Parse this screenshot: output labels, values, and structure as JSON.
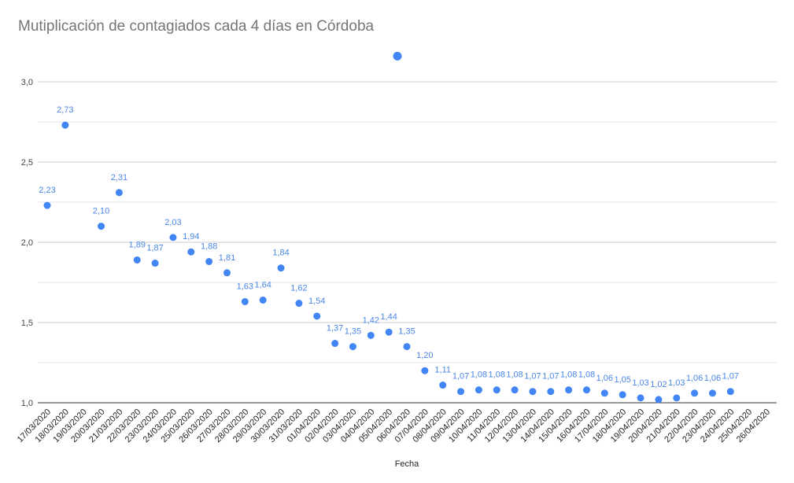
{
  "chart_data": {
    "type": "scatter",
    "title": "Mutiplicación de contagiados cada 4 días en Córdoba",
    "xlabel": "Fecha",
    "ylabel": "",
    "ylim": [
      1.0,
      3.2
    ],
    "yticks": [
      "1,0",
      "1,5",
      "2,0",
      "2,5",
      "3,0"
    ],
    "ytick_values": [
      1.0,
      1.5,
      2.0,
      2.5,
      3.0
    ],
    "grid": true,
    "color": "#4285f4",
    "label_color": "#4a86e8",
    "categories": [
      "17/03/2020",
      "18/03/2020",
      "19/03/2020",
      "20/03/2020",
      "21/03/2020",
      "22/03/2020",
      "23/03/2020",
      "24/03/2020",
      "25/03/2020",
      "26/03/2020",
      "27/03/2020",
      "28/03/2020",
      "29/03/2020",
      "30/03/2020",
      "31/03/2020",
      "01/04/2020",
      "02/04/2020",
      "03/04/2020",
      "04/04/2020",
      "05/04/2020",
      "06/04/2020",
      "07/04/2020",
      "08/04/2020",
      "09/04/2020",
      "10/04/2020",
      "11/04/2020",
      "12/04/2020",
      "13/04/2020",
      "14/04/2020",
      "15/04/2020",
      "16/04/2020",
      "17/04/2020",
      "18/04/2020",
      "19/04/2020",
      "20/04/2020",
      "21/04/2020",
      "22/04/2020",
      "23/04/2020",
      "24/04/2020",
      "25/04/2020",
      "26/04/2020"
    ],
    "values": [
      2.23,
      2.73,
      null,
      2.1,
      2.31,
      1.89,
      1.87,
      2.03,
      1.94,
      1.88,
      1.81,
      1.63,
      1.64,
      1.84,
      1.62,
      1.54,
      1.37,
      1.35,
      1.42,
      1.44,
      1.35,
      1.2,
      1.11,
      1.07,
      1.08,
      1.08,
      1.08,
      1.07,
      1.07,
      1.08,
      1.08,
      1.06,
      1.05,
      1.03,
      1.02,
      1.03,
      1.06,
      1.06,
      1.07,
      null,
      null
    ],
    "value_labels": [
      "2,23",
      "2,73",
      "",
      "2,10",
      "2,31",
      "1,89",
      "1,87",
      "2,03",
      "1,94",
      "1,88",
      "1,81",
      "1,63",
      "1,64",
      "1,84",
      "1,62",
      "1,54",
      "1,37",
      "1,35",
      "1,42",
      "1,44",
      "1,35",
      "1,20",
      "1,11",
      "1,07",
      "1,08",
      "1,08",
      "1,08",
      "1,07",
      "1,07",
      "1,08",
      "1,08",
      "1,06",
      "1,05",
      "1,03",
      "1,02",
      "1,03",
      "1,06",
      "1,06",
      "1,07",
      "",
      ""
    ],
    "legend": {
      "name": "",
      "value": 3.16
    }
  }
}
